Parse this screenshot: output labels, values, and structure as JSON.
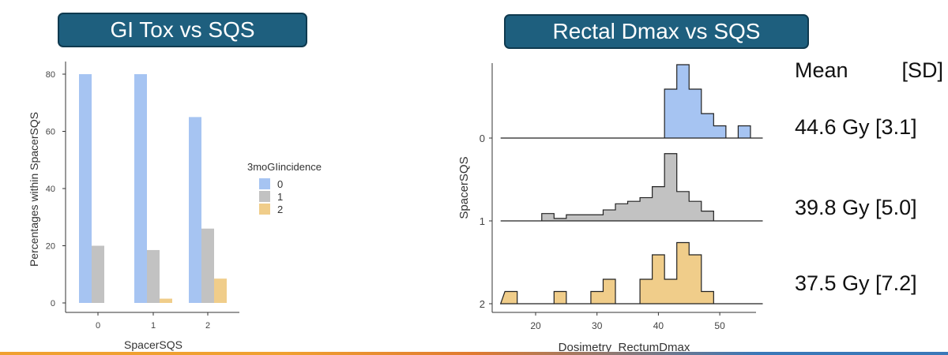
{
  "titles": {
    "left": "GI Tox vs SQS",
    "right": "Rectal Dmax vs SQS"
  },
  "colors": {
    "title_bg": "#1e5f7e",
    "group0": "#a6c4f2",
    "group1": "#c2c2c2",
    "group2": "#f0cd8a"
  },
  "stats": {
    "header_mean": "Mean",
    "header_sd": "[SD]",
    "rows": [
      "44.6 Gy [3.1]",
      "39.8 Gy [5.0]",
      "37.5 Gy [7.2]"
    ]
  },
  "chart_data": [
    {
      "type": "bar",
      "title": "",
      "xlabel": "SpacerSQS",
      "ylabel": "Percentages within SpacerSQS",
      "categories": [
        "0",
        "1",
        "2"
      ],
      "ylim": [
        0,
        83
      ],
      "yticks": [
        0,
        20,
        40,
        60,
        80
      ],
      "legend_title": "3moGIincidence",
      "legend_position": "right",
      "grid": false,
      "series": [
        {
          "name": "0",
          "values": [
            80,
            80,
            65
          ]
        },
        {
          "name": "1",
          "values": [
            20,
            18.5,
            26
          ]
        },
        {
          "name": "2",
          "values": [
            0,
            1.5,
            8.5
          ]
        }
      ]
    },
    {
      "type": "area",
      "subtype": "ridgeline-histogram",
      "title": "",
      "xlabel": "Dosimetry_RectumDmax",
      "ylabel": "SpacerSQS",
      "xlim": [
        14,
        55
      ],
      "xticks": [
        20,
        30,
        40,
        50
      ],
      "ridge_labels": [
        "0",
        "1",
        "2"
      ],
      "bin_width": 2,
      "bin_start": 15,
      "series": [
        {
          "name": "0",
          "counts": [
            0,
            0,
            0,
            0,
            0,
            0,
            0,
            0,
            0,
            0,
            0,
            0,
            0,
            4,
            6,
            4,
            2,
            1,
            0,
            1,
            0
          ]
        },
        {
          "name": "1",
          "counts": [
            0,
            0,
            0,
            0.6,
            0.2,
            0.5,
            0.5,
            0.5,
            0.9,
            1.4,
            1.6,
            1.9,
            2.8,
            5.5,
            2.4,
            1.6,
            0.8,
            0,
            0,
            0,
            0
          ]
        },
        {
          "name": "2",
          "counts": [
            1,
            0,
            0,
            0,
            1,
            0,
            0,
            1,
            2,
            0,
            0,
            2,
            4,
            2,
            5,
            4,
            1,
            0,
            0,
            0,
            0
          ]
        }
      ]
    }
  ]
}
